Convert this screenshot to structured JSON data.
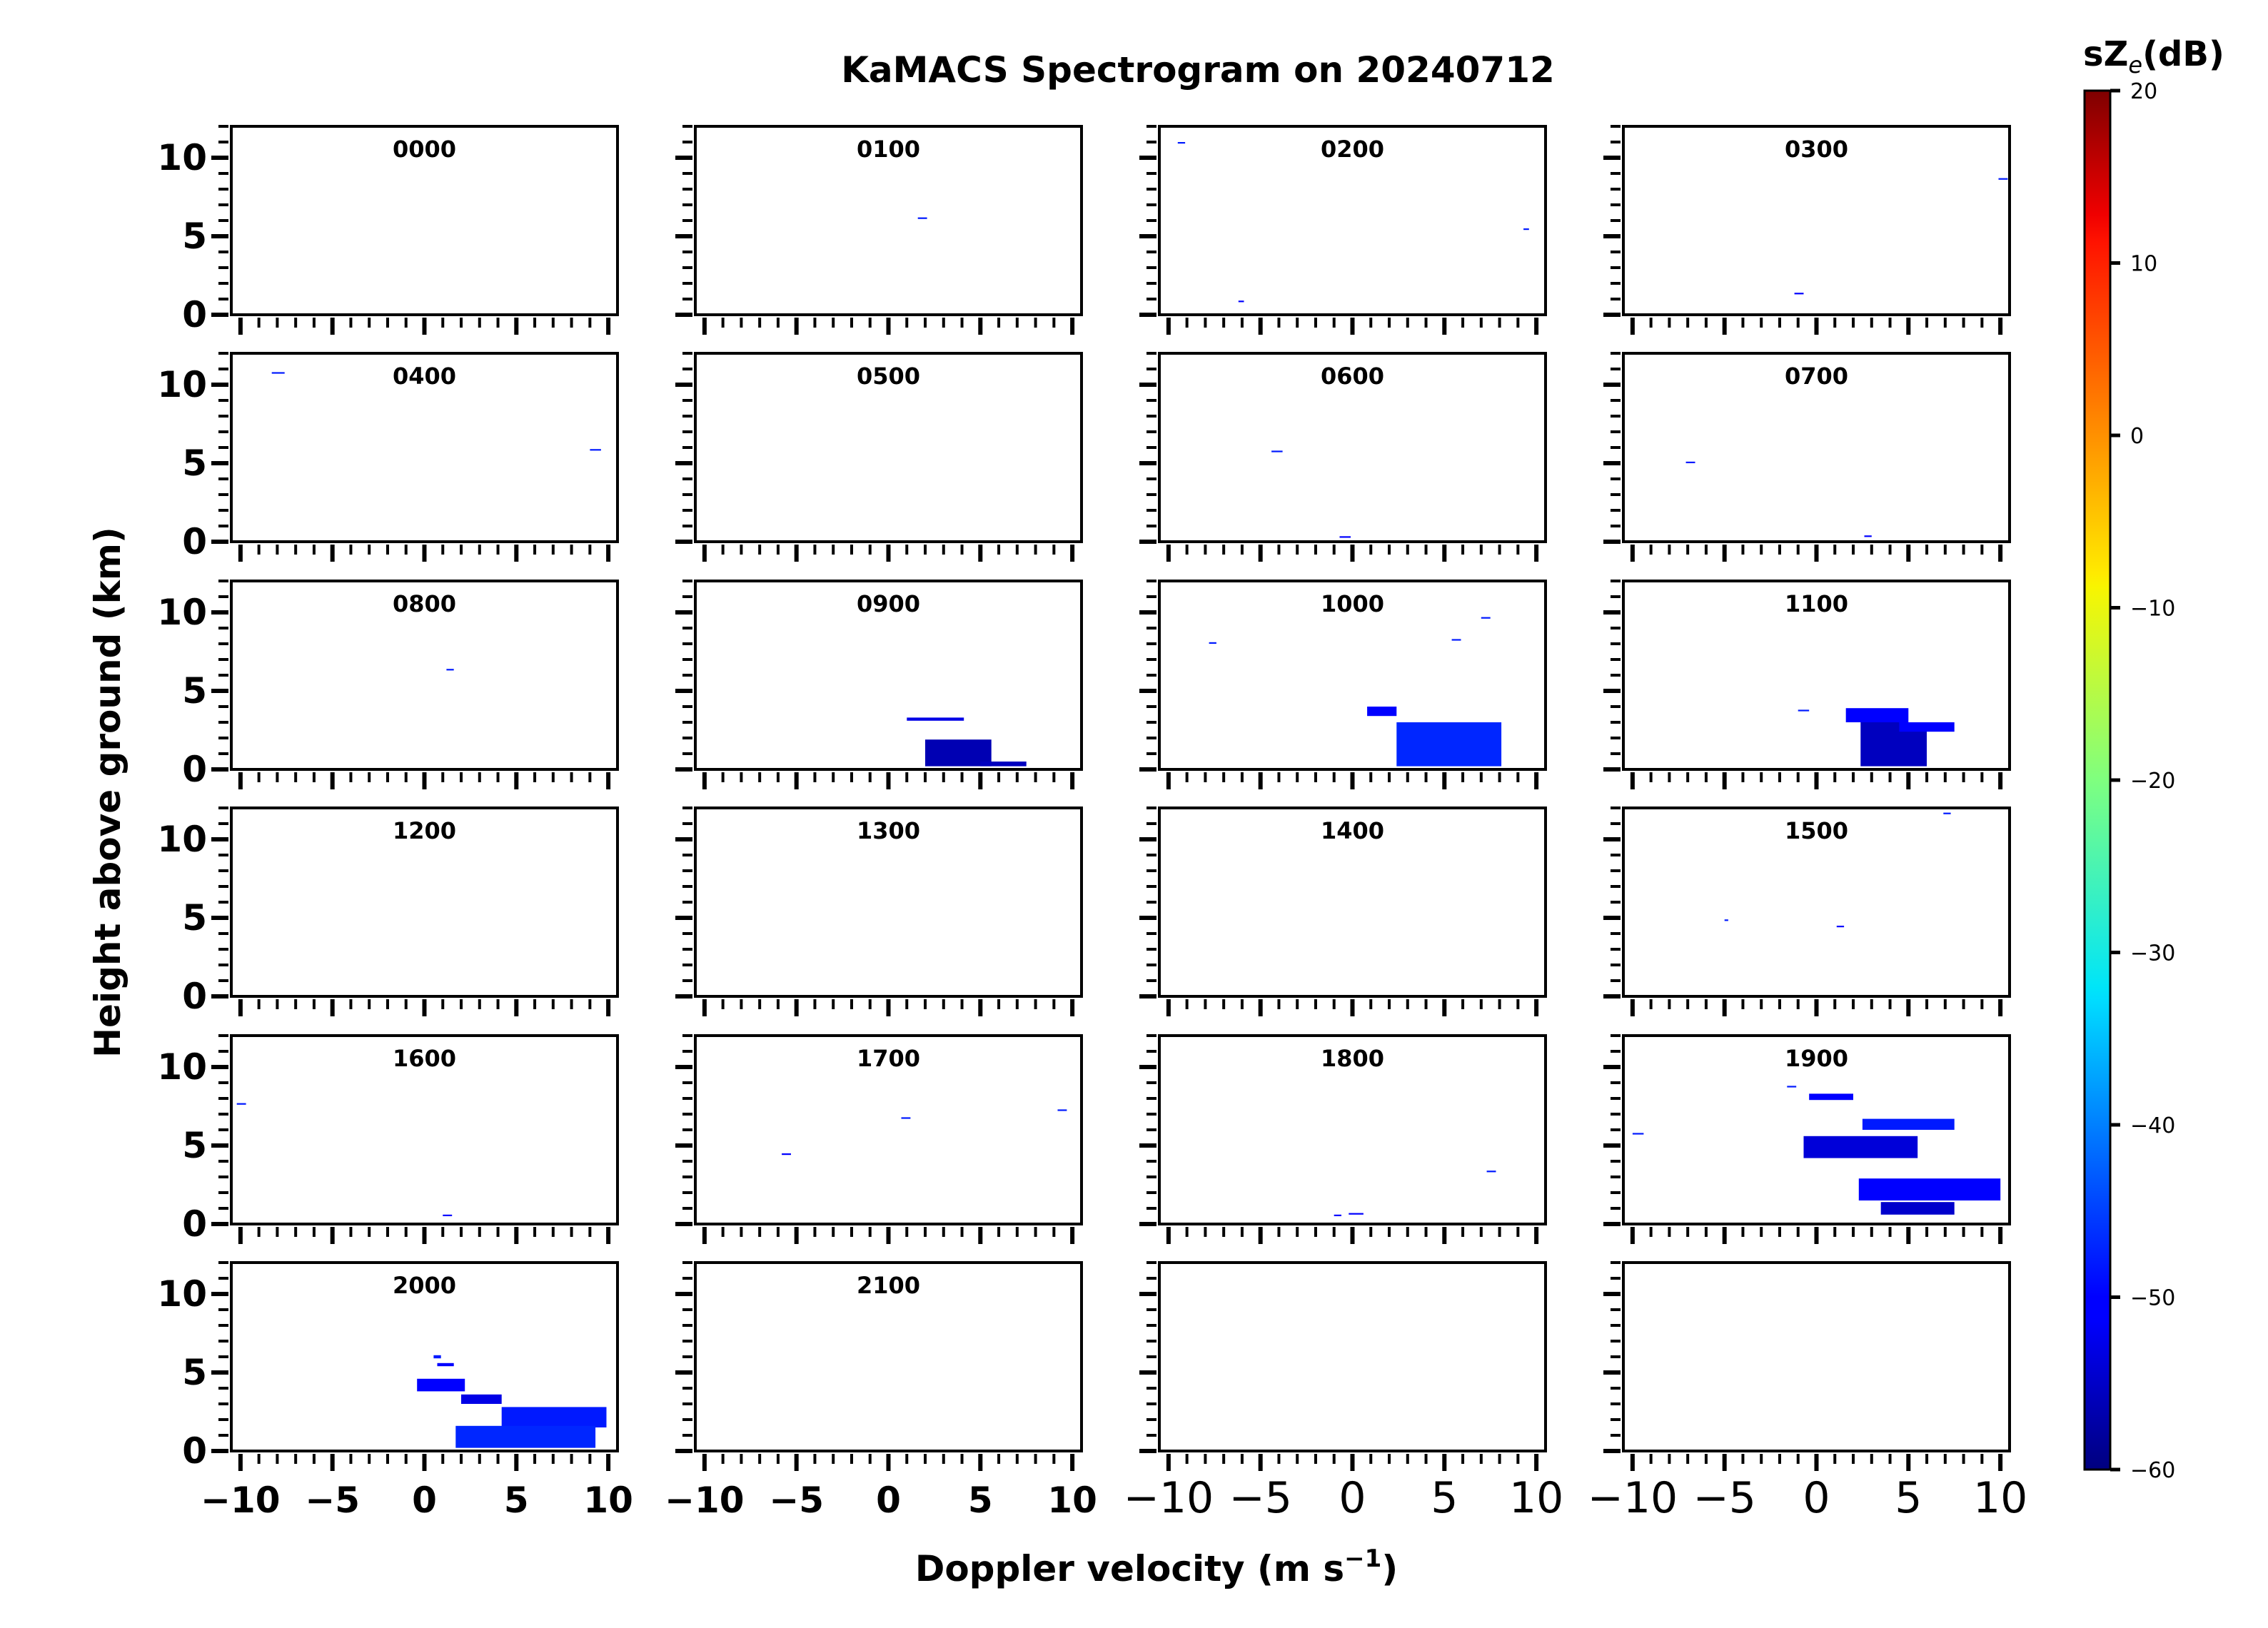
{
  "chart_data": {
    "type": "heatmap",
    "title": "KaMACS Spectrogram on 20240712",
    "xlabel": "Doppler velocity (m s",
    "xlabel_superscript": "−1",
    "xlabel_close": ")",
    "ylabel": "Height above ground (km)",
    "xlim": [
      -10.5,
      10.5
    ],
    "ylim": [
      0,
      12
    ],
    "x_ticks": [
      -10,
      -5,
      0,
      5,
      10
    ],
    "x_tick_labels": [
      "−10",
      "−5",
      "0",
      "5",
      "10"
    ],
    "y_ticks": [
      0,
      5,
      10
    ],
    "y_tick_labels": [
      "0",
      "5",
      "10"
    ],
    "grid": false,
    "colorbar": {
      "label_prefix": "sZ",
      "label_subscript": "e",
      "label_suffix": "(dB)",
      "min": -60,
      "max": 20,
      "ticks": [
        20,
        10,
        0,
        -10,
        -20,
        -30,
        -40,
        -50,
        -60
      ],
      "tick_labels": [
        "20",
        "10",
        "0",
        "−10",
        "−20",
        "−30",
        "−40",
        "−50",
        "−60"
      ],
      "colormap": "jet"
    },
    "panels": [
      {
        "label": "0000",
        "echoes": []
      },
      {
        "label": "0100",
        "echoes": [
          {
            "v": [
              1.6,
              2.1
            ],
            "h": [
              6.1,
              6.2
            ],
            "dbz": -48
          }
        ]
      },
      {
        "label": "0200",
        "echoes": [
          {
            "v": [
              -9.5,
              -9.1
            ],
            "h": [
              10.9,
              11.0
            ],
            "dbz": -48
          },
          {
            "v": [
              9.3,
              9.6
            ],
            "h": [
              5.4,
              5.5
            ],
            "dbz": -48
          },
          {
            "v": [
              -6.2,
              -5.9
            ],
            "h": [
              0.8,
              0.9
            ],
            "dbz": -50
          }
        ]
      },
      {
        "label": "0300",
        "echoes": [
          {
            "v": [
              9.9,
              10.4
            ],
            "h": [
              8.6,
              8.7
            ],
            "dbz": -48
          },
          {
            "v": [
              -1.2,
              -0.7
            ],
            "h": [
              1.3,
              1.4
            ],
            "dbz": -50
          }
        ]
      },
      {
        "label": "0400",
        "echoes": [
          {
            "v": [
              -8.3,
              -7.6
            ],
            "h": [
              10.7,
              10.8
            ],
            "dbz": -48
          },
          {
            "v": [
              9.0,
              9.6
            ],
            "h": [
              5.8,
              5.9
            ],
            "dbz": -48
          }
        ]
      },
      {
        "label": "0500",
        "echoes": []
      },
      {
        "label": "0600",
        "echoes": [
          {
            "v": [
              -4.4,
              -3.8
            ],
            "h": [
              5.7,
              5.8
            ],
            "dbz": -48
          },
          {
            "v": [
              -0.7,
              -0.1
            ],
            "h": [
              0.25,
              0.35
            ],
            "dbz": -50
          }
        ]
      },
      {
        "label": "0700",
        "echoes": [
          {
            "v": [
              -7.1,
              -6.6
            ],
            "h": [
              5.0,
              5.1
            ],
            "dbz": -48
          },
          {
            "v": [
              2.6,
              3.0
            ],
            "h": [
              0.3,
              0.4
            ],
            "dbz": -50
          }
        ]
      },
      {
        "label": "0800",
        "echoes": [
          {
            "v": [
              1.2,
              1.6
            ],
            "h": [
              6.3,
              6.4
            ],
            "dbz": -48
          }
        ]
      },
      {
        "label": "0900",
        "echoes": [
          {
            "v": [
              1.0,
              4.1
            ],
            "h": [
              3.1,
              3.3
            ],
            "dbz": -52
          },
          {
            "v": [
              2.0,
              5.6
            ],
            "h": [
              0.2,
              1.9
            ],
            "dbz": -56
          },
          {
            "v": [
              5.0,
              7.5
            ],
            "h": [
              0.2,
              0.5
            ],
            "dbz": -55
          }
        ]
      },
      {
        "label": "1000",
        "echoes": [
          {
            "v": [
              -7.8,
              -7.4
            ],
            "h": [
              8.0,
              8.1
            ],
            "dbz": -48
          },
          {
            "v": [
              5.4,
              5.9
            ],
            "h": [
              8.2,
              8.3
            ],
            "dbz": -48
          },
          {
            "v": [
              7.0,
              7.5
            ],
            "h": [
              9.6,
              9.7
            ],
            "dbz": -48
          },
          {
            "v": [
              0.8,
              2.4
            ],
            "h": [
              3.4,
              4.0
            ],
            "dbz": -50
          },
          {
            "v": [
              2.4,
              8.1
            ],
            "h": [
              0.2,
              3.0
            ],
            "dbz": -47
          }
        ]
      },
      {
        "label": "1100",
        "echoes": [
          {
            "v": [
              -1.0,
              -0.4
            ],
            "h": [
              3.7,
              3.8
            ],
            "dbz": -48
          },
          {
            "v": [
              1.6,
              5.0
            ],
            "h": [
              3.0,
              3.9
            ],
            "dbz": -50
          },
          {
            "v": [
              2.4,
              6.0
            ],
            "h": [
              0.2,
              3.0
            ],
            "dbz": -55
          },
          {
            "v": [
              4.5,
              7.5
            ],
            "h": [
              2.4,
              3.0
            ],
            "dbz": -50
          }
        ]
      },
      {
        "label": "1200",
        "echoes": []
      },
      {
        "label": "1300",
        "echoes": []
      },
      {
        "label": "1400",
        "echoes": []
      },
      {
        "label": "1500",
        "echoes": [
          {
            "v": [
              6.9,
              7.3
            ],
            "h": [
              11.6,
              11.7
            ],
            "dbz": -48
          },
          {
            "v": [
              -5.0,
              -4.8
            ],
            "h": [
              4.8,
              4.9
            ],
            "dbz": -48
          },
          {
            "v": [
              1.1,
              1.5
            ],
            "h": [
              4.4,
              4.5
            ],
            "dbz": -50
          }
        ]
      },
      {
        "label": "1600",
        "echoes": [
          {
            "v": [
              -10.2,
              -9.7
            ],
            "h": [
              7.6,
              7.7
            ],
            "dbz": -48
          },
          {
            "v": [
              1.0,
              1.5
            ],
            "h": [
              0.5,
              0.6
            ],
            "dbz": -50
          }
        ]
      },
      {
        "label": "1700",
        "echoes": [
          {
            "v": [
              9.2,
              9.7
            ],
            "h": [
              7.2,
              7.3
            ],
            "dbz": -48
          },
          {
            "v": [
              0.7,
              1.2
            ],
            "h": [
              6.7,
              6.8
            ],
            "dbz": -48
          },
          {
            "v": [
              -5.8,
              -5.3
            ],
            "h": [
              4.4,
              4.5
            ],
            "dbz": -50
          }
        ]
      },
      {
        "label": "1800",
        "echoes": [
          {
            "v": [
              7.3,
              7.8
            ],
            "h": [
              3.3,
              3.4
            ],
            "dbz": -48
          },
          {
            "v": [
              -0.2,
              0.6
            ],
            "h": [
              0.6,
              0.7
            ],
            "dbz": -50
          },
          {
            "v": [
              -1.0,
              -0.6
            ],
            "h": [
              0.5,
              0.6
            ],
            "dbz": -50
          }
        ]
      },
      {
        "label": "1900",
        "echoes": [
          {
            "v": [
              -1.6,
              -1.1
            ],
            "h": [
              8.7,
              8.8
            ],
            "dbz": -48
          },
          {
            "v": [
              -0.4,
              2.0
            ],
            "h": [
              7.9,
              8.3
            ],
            "dbz": -50
          },
          {
            "v": [
              2.5,
              7.5
            ],
            "h": [
              6.0,
              6.7
            ],
            "dbz": -48
          },
          {
            "v": [
              -10.0,
              -9.4
            ],
            "h": [
              5.7,
              5.8
            ],
            "dbz": -48
          },
          {
            "v": [
              -0.7,
              5.5
            ],
            "h": [
              4.2,
              5.6
            ],
            "dbz": -53
          },
          {
            "v": [
              2.3,
              10.0
            ],
            "h": [
              1.5,
              2.9
            ],
            "dbz": -50
          },
          {
            "v": [
              3.5,
              7.5
            ],
            "h": [
              0.6,
              1.4
            ],
            "dbz": -54
          }
        ]
      },
      {
        "label": "2000",
        "echoes": [
          {
            "v": [
              0.5,
              0.9
            ],
            "h": [
              5.9,
              6.1
            ],
            "dbz": -48
          },
          {
            "v": [
              0.7,
              1.6
            ],
            "h": [
              5.4,
              5.6
            ],
            "dbz": -50
          },
          {
            "v": [
              -0.4,
              2.2
            ],
            "h": [
              3.8,
              4.6
            ],
            "dbz": -50
          },
          {
            "v": [
              2.0,
              4.2
            ],
            "h": [
              3.0,
              3.6
            ],
            "dbz": -52
          },
          {
            "v": [
              4.2,
              9.9
            ],
            "h": [
              1.5,
              2.8
            ],
            "dbz": -48
          },
          {
            "v": [
              1.7,
              9.3
            ],
            "h": [
              0.2,
              1.6
            ],
            "dbz": -47
          }
        ]
      },
      {
        "label": "2100",
        "echoes": []
      },
      {
        "label": "",
        "echoes": []
      },
      {
        "label": "",
        "echoes": []
      }
    ]
  }
}
